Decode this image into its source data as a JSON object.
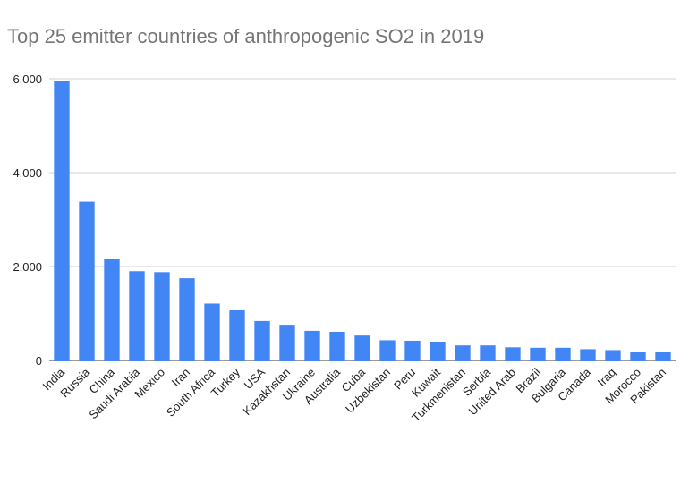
{
  "chart_data": {
    "type": "bar",
    "title": "Top 25 emitter countries of anthropogenic SO2 in 2019",
    "xlabel": "",
    "ylabel": "",
    "ylim": [
      0,
      6000
    ],
    "yticks": [
      0,
      2000,
      4000,
      6000
    ],
    "ytick_labels": [
      "0",
      "2,000",
      "4,000",
      "6,000"
    ],
    "grid": true,
    "bar_color": "#4285f4",
    "categories": [
      "India",
      "Russia",
      "China",
      "Saudi Arabia",
      "Mexico",
      "Iran",
      "South Africa",
      "Turkey",
      "USA",
      "Kazakhstan",
      "Ukraine",
      "Australia",
      "Cuba",
      "Uzbekistan",
      "Peru",
      "Kuwait",
      "Turkmenistan",
      "Serbia",
      "United Arab",
      "Brazil",
      "Bulgaria",
      "Canada",
      "Iraq",
      "Morocco",
      "Pakistan"
    ],
    "values": [
      5950,
      3380,
      2160,
      1900,
      1880,
      1750,
      1210,
      1070,
      840,
      760,
      630,
      610,
      530,
      430,
      420,
      400,
      320,
      320,
      280,
      270,
      270,
      240,
      220,
      190,
      190
    ]
  }
}
